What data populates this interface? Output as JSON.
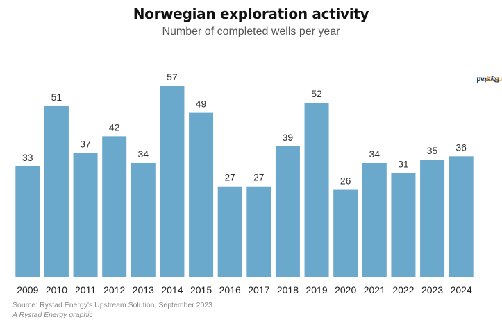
{
  "header": {
    "title": "Norwegian exploration activity",
    "subtitle": "Number of completed wells per year"
  },
  "brand": {
    "part1": "Rystad",
    "part2": "Energy"
  },
  "footer": {
    "source": "Source: Rystad Energy's Upstream Solution, September 2023",
    "credit": "A Rystad Energy graphic"
  },
  "chart_data": {
    "type": "bar",
    "title": "Norwegian exploration activity",
    "subtitle": "Number of completed wells per year",
    "xlabel": "",
    "ylabel": "",
    "categories": [
      "2009",
      "2010",
      "2011",
      "2012",
      "2013",
      "2014",
      "2015",
      "2016",
      "2017",
      "2018",
      "2019",
      "2020",
      "2021",
      "2022",
      "2023",
      "2024"
    ],
    "values": [
      33,
      51,
      37,
      42,
      34,
      57,
      49,
      27,
      27,
      39,
      52,
      26,
      34,
      31,
      35,
      36
    ],
    "ylim": [
      0,
      57
    ],
    "grid": false,
    "data_labels": true,
    "bar_color": "#6aa8cc"
  }
}
